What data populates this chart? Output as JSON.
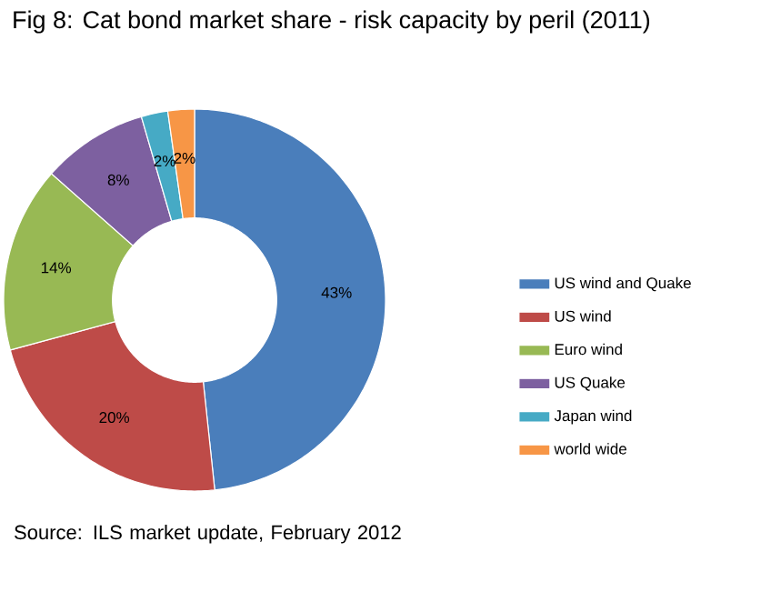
{
  "chart_data": {
    "type": "donut",
    "title": "Fig 8: Cat bond market share - risk capacity by peril (2011)",
    "categories": [
      "US wind and Quake",
      "US wind",
      "Euro wind",
      "US  Quake",
      "Japan wind",
      "world wide"
    ],
    "values": [
      43,
      20,
      14,
      8,
      2,
      2
    ],
    "value_labels": [
      "43%",
      "20%",
      "14%",
      "8%",
      "2%",
      "2%"
    ],
    "colors": [
      "#4a7ebb",
      "#be4b48",
      "#98b954",
      "#7d60a0",
      "#46aac5",
      "#f79646"
    ],
    "legend": "right",
    "annotations": [
      "Source: ILS market update, February 2012"
    ]
  }
}
